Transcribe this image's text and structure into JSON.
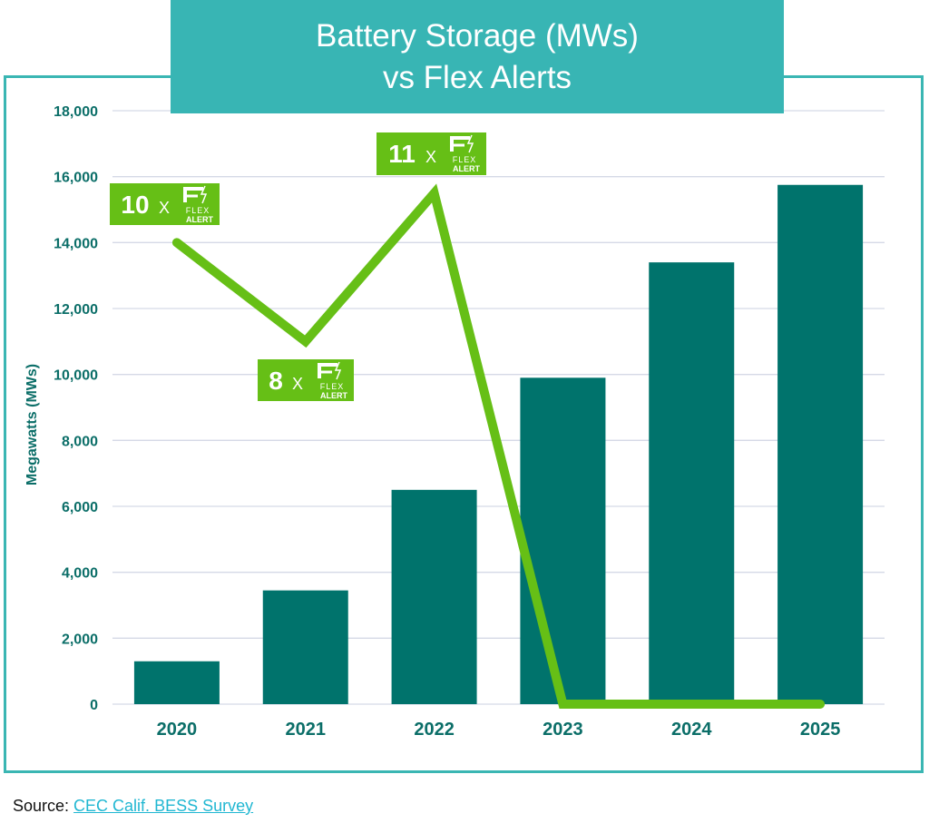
{
  "title_lines": [
    "Battery Storage (MWs)",
    "vs Flex Alerts"
  ],
  "source": {
    "prefix": "Source: ",
    "link_text": "CEC Calif. BESS Survey"
  },
  "colors": {
    "bar": "#00736c",
    "line": "#66bf16",
    "frame": "#3ab6b3",
    "title_bg": "#38b5b4",
    "axis_text": "#0b6e68",
    "grid": "#d5d9e6",
    "badge": "#66bf16"
  },
  "chart_data": {
    "type": "bar",
    "categories": [
      "2020",
      "2021",
      "2022",
      "2023",
      "2024",
      "2025"
    ],
    "ylabel": "Megawatts (MWs)",
    "ylim": [
      0,
      18000
    ],
    "yticks": [
      0,
      2000,
      4000,
      6000,
      8000,
      10000,
      12000,
      14000,
      16000,
      18000
    ],
    "ytick_labels": [
      "0",
      "2,000",
      "4,000",
      "6,000",
      "8,000",
      "10,000",
      "12,000",
      "14,000",
      "16,000",
      "18,000"
    ],
    "grid": true,
    "series": [
      {
        "type": "bar",
        "values": [
          1300,
          3450,
          6500,
          9900,
          13400,
          15750
        ]
      },
      {
        "type": "line",
        "values": [
          14000,
          11000,
          15500,
          0,
          0,
          0
        ]
      }
    ],
    "annotations": [
      {
        "category": "2020",
        "count": "10",
        "sep": "X",
        "logo_text": [
          "FLEX",
          "ALERT"
        ]
      },
      {
        "category": "2021",
        "count": "8",
        "sep": "X",
        "logo_text": [
          "FLEX",
          "ALERT"
        ]
      },
      {
        "category": "2022",
        "count": "11",
        "sep": "X",
        "logo_text": [
          "FLEX",
          "ALERT"
        ]
      }
    ]
  }
}
